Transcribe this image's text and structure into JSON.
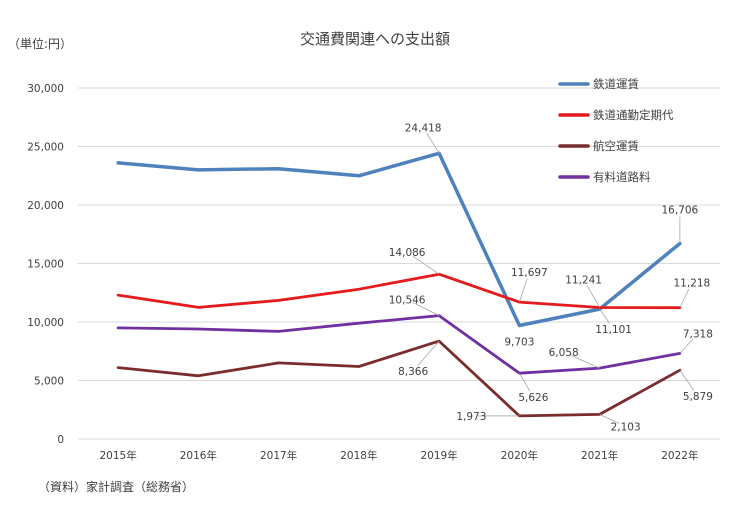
{
  "chart_data": {
    "type": "line",
    "title": "交通費関連への支出額",
    "unit_label": "（単位:円）",
    "source": "（資料）家計調査（総務省）",
    "categories": [
      "2015年",
      "2016年",
      "2017年",
      "2018年",
      "2019年",
      "2020年",
      "2021年",
      "2022年"
    ],
    "ylim": [
      0,
      30000
    ],
    "yticks": [
      "0",
      "5,000",
      "10,000",
      "15,000",
      "20,000",
      "25,000",
      "30,000"
    ],
    "grid": true,
    "legend_position": "top-right",
    "series": [
      {
        "name": "鉄道運賃",
        "color": "#4f81bd",
        "values": [
          23600,
          23000,
          23100,
          22500,
          24418,
          9703,
          11101,
          16706
        ]
      },
      {
        "name": "鉄道通勤定期代",
        "color": "#e41a1c",
        "values": [
          12300,
          11250,
          11850,
          12800,
          14086,
          11697,
          11241,
          11218
        ]
      },
      {
        "name": "航空運賃",
        "color": "#7b2c2c",
        "values": [
          6100,
          5400,
          6500,
          6200,
          8366,
          1973,
          2103,
          5879
        ]
      },
      {
        "name": "有料道路料",
        "color": "#7030a0",
        "values": [
          9500,
          9400,
          9200,
          9900,
          10546,
          5626,
          6058,
          7318
        ]
      }
    ],
    "data_labels": [
      {
        "series": 0,
        "index": 4,
        "text": "24,418"
      },
      {
        "series": 0,
        "index": 5,
        "text": "9,703"
      },
      {
        "series": 0,
        "index": 6,
        "text": "11,101"
      },
      {
        "series": 0,
        "index": 7,
        "text": "16,706"
      },
      {
        "series": 1,
        "index": 4,
        "text": "14,086"
      },
      {
        "series": 1,
        "index": 5,
        "text": "11,697"
      },
      {
        "series": 1,
        "index": 6,
        "text": "11,241"
      },
      {
        "series": 1,
        "index": 7,
        "text": "11,218"
      },
      {
        "series": 2,
        "index": 4,
        "text": "8,366"
      },
      {
        "series": 2,
        "index": 5,
        "text": "1,973"
      },
      {
        "series": 2,
        "index": 6,
        "text": "2,103"
      },
      {
        "series": 2,
        "index": 7,
        "text": "5,879"
      },
      {
        "series": 3,
        "index": 4,
        "text": "10,546"
      },
      {
        "series": 3,
        "index": 5,
        "text": "5,626"
      },
      {
        "series": 3,
        "index": 6,
        "text": "6,058"
      },
      {
        "series": 3,
        "index": 7,
        "text": "7,318"
      }
    ]
  }
}
